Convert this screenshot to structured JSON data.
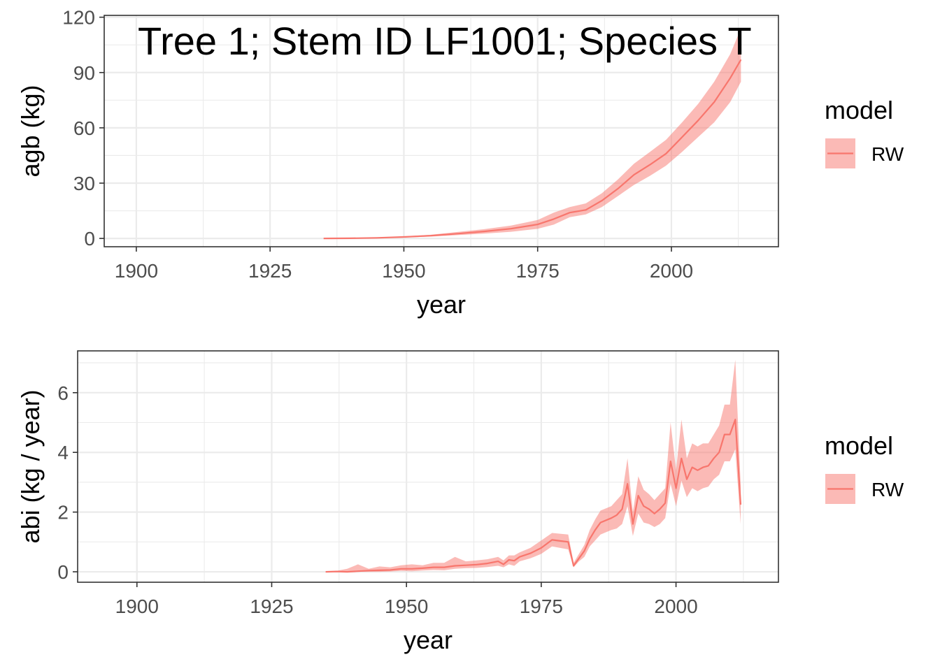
{
  "colors": {
    "series": "#F8766D",
    "ribbon": "#F8766D",
    "grid": "#EBEBEB",
    "panel_border": "#333333",
    "tick_text": "#4D4D4D"
  },
  "chart_data": [
    {
      "type": "line",
      "title": "Tree 1; Stem ID LF1001; Species T",
      "xlabel": "year",
      "ylabel": "agb (kg)",
      "xlim": [
        1894,
        2020
      ],
      "ylim": [
        -4.5,
        121
      ],
      "xticks": [
        1900,
        1925,
        1950,
        1975,
        2000
      ],
      "yticks": [
        0,
        30,
        60,
        90,
        120
      ],
      "grid": true,
      "legend": {
        "title": "model",
        "entries": [
          "RW"
        ],
        "placement": "right"
      },
      "series": [
        {
          "name": "RW",
          "x": [
            1935,
            1940,
            1945,
            1950,
            1955,
            1960,
            1965,
            1970,
            1975,
            1978,
            1981,
            1984,
            1987,
            1990,
            1993,
            1996,
            1999,
            2002,
            2005,
            2008,
            2011,
            2013
          ],
          "y": [
            0,
            0.1,
            0.3,
            0.8,
            1.5,
            2.6,
            3.8,
            5.3,
            7.6,
            10.5,
            14,
            15.5,
            20.5,
            27,
            34.5,
            40,
            46,
            55,
            64,
            74,
            87,
            97
          ],
          "lower": [
            0,
            0.05,
            0.2,
            0.5,
            1.0,
            1.8,
            2.6,
            3.6,
            5.2,
            7.5,
            11.5,
            13.0,
            17.0,
            23.0,
            29.0,
            34.0,
            39.5,
            47.0,
            55.0,
            63.0,
            74.0,
            85.0
          ],
          "upper": [
            0,
            0.2,
            0.5,
            1.1,
            2.0,
            3.5,
            5.0,
            7.0,
            10.0,
            14.0,
            17.0,
            19.0,
            24.5,
            32.0,
            40.5,
            47.0,
            53.5,
            63.0,
            73.0,
            85.0,
            100.0,
            114.0
          ]
        }
      ]
    },
    {
      "type": "line",
      "title": "",
      "xlabel": "year",
      "ylabel": "abi (kg / year)",
      "xlim": [
        1889,
        2019
      ],
      "ylim": [
        -0.35,
        7.4
      ],
      "xticks": [
        1900,
        1925,
        1950,
        1975,
        2000
      ],
      "yticks": [
        0,
        2,
        4,
        6
      ],
      "grid": true,
      "legend": {
        "title": "model",
        "entries": [
          "RW"
        ],
        "placement": "right"
      },
      "series": [
        {
          "name": "RW",
          "x": [
            1935,
            1937,
            1939,
            1941,
            1943,
            1945,
            1947,
            1949,
            1951,
            1953,
            1955,
            1957,
            1959,
            1961,
            1963,
            1965,
            1967,
            1968,
            1969,
            1970,
            1971,
            1973,
            1975,
            1977,
            1980,
            1981,
            1982,
            1983,
            1984,
            1985,
            1986,
            1988,
            1989,
            1990,
            1991,
            1992,
            1993,
            1994,
            1995,
            1996,
            1997,
            1998,
            1999,
            2000,
            2001,
            2002,
            2003,
            2004,
            2005,
            2006,
            2007,
            2008,
            2009,
            2010,
            2011,
            2012
          ],
          "y": [
            0,
            0.01,
            0,
            0.02,
            0.04,
            0.05,
            0.06,
            0.1,
            0.1,
            0.12,
            0.15,
            0.15,
            0.2,
            0.22,
            0.24,
            0.28,
            0.35,
            0.25,
            0.4,
            0.37,
            0.5,
            0.62,
            0.8,
            1.07,
            1.0,
            0.2,
            0.45,
            0.7,
            1.1,
            1.4,
            1.65,
            1.8,
            1.9,
            2.1,
            2.95,
            1.6,
            2.55,
            2.2,
            2.1,
            1.95,
            2.1,
            2.3,
            3.7,
            2.8,
            3.8,
            3.1,
            3.5,
            3.4,
            3.5,
            3.55,
            3.8,
            4.0,
            4.6,
            4.6,
            5.1,
            2.25
          ],
          "lower": [
            0,
            0,
            -0.02,
            0,
            0,
            0,
            0.01,
            0.03,
            0.02,
            0.04,
            0.06,
            0.05,
            0.1,
            0.12,
            0.13,
            0.16,
            0.2,
            0.15,
            0.25,
            0.2,
            0.35,
            0.45,
            0.6,
            0.85,
            0.75,
            0.15,
            0.35,
            0.5,
            0.85,
            1.05,
            1.25,
            1.4,
            1.45,
            1.6,
            2.2,
            1.2,
            1.95,
            1.65,
            1.6,
            1.5,
            1.6,
            1.8,
            2.95,
            2.2,
            3.05,
            2.5,
            2.8,
            2.7,
            2.8,
            2.85,
            3.1,
            3.25,
            3.7,
            3.7,
            4.1,
            1.6
          ],
          "upper": [
            0,
            0.03,
            0.1,
            0.25,
            0.1,
            0.18,
            0.15,
            0.22,
            0.25,
            0.22,
            0.3,
            0.3,
            0.5,
            0.35,
            0.38,
            0.42,
            0.5,
            0.38,
            0.55,
            0.55,
            0.65,
            0.8,
            1.05,
            1.3,
            1.25,
            0.3,
            0.6,
            0.9,
            1.4,
            1.75,
            2.05,
            2.2,
            2.4,
            2.6,
            3.8,
            2.0,
            3.2,
            2.75,
            2.6,
            2.4,
            2.6,
            2.8,
            5.0,
            3.4,
            5.1,
            3.8,
            4.3,
            4.2,
            4.3,
            4.3,
            4.6,
            4.9,
            5.6,
            5.6,
            7.1,
            2.9
          ]
        }
      ]
    }
  ]
}
